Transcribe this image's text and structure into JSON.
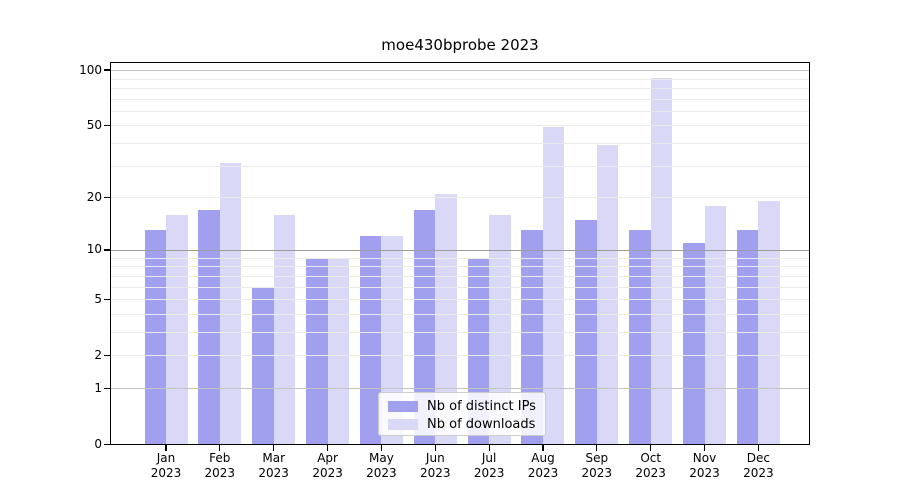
{
  "chart_data": {
    "type": "bar",
    "title": "moe430bprobe 2023",
    "categories": [
      "Jan",
      "Feb",
      "Mar",
      "Apr",
      "May",
      "Jun",
      "Jul",
      "Aug",
      "Sep",
      "Oct",
      "Nov",
      "Dec"
    ],
    "year_label": "2023",
    "series": [
      {
        "name": "Nb of distinct IPs",
        "color": "#a0a0ef",
        "values": [
          13,
          17,
          6,
          9,
          12,
          17,
          9,
          13,
          15,
          13,
          11,
          13
        ]
      },
      {
        "name": "Nb of downloads",
        "color": "#d9d9f7",
        "values": [
          16,
          31,
          16,
          9,
          12,
          21,
          16,
          49,
          39,
          91,
          18,
          19
        ]
      }
    ],
    "yscale": "log1p",
    "yticks": [
      0,
      1,
      2,
      5,
      10,
      20,
      50,
      100
    ],
    "minor_gridlines": [
      3,
      4,
      6,
      7,
      8,
      9,
      30,
      40,
      60,
      70,
      80,
      90
    ],
    "light_gridlines": [
      2,
      5,
      20,
      50
    ],
    "medium_gridlines": [
      1,
      100
    ],
    "dark_gridlines": [
      10
    ],
    "ylim": [
      0,
      110
    ],
    "grid": true,
    "legend_position": "lower center"
  }
}
